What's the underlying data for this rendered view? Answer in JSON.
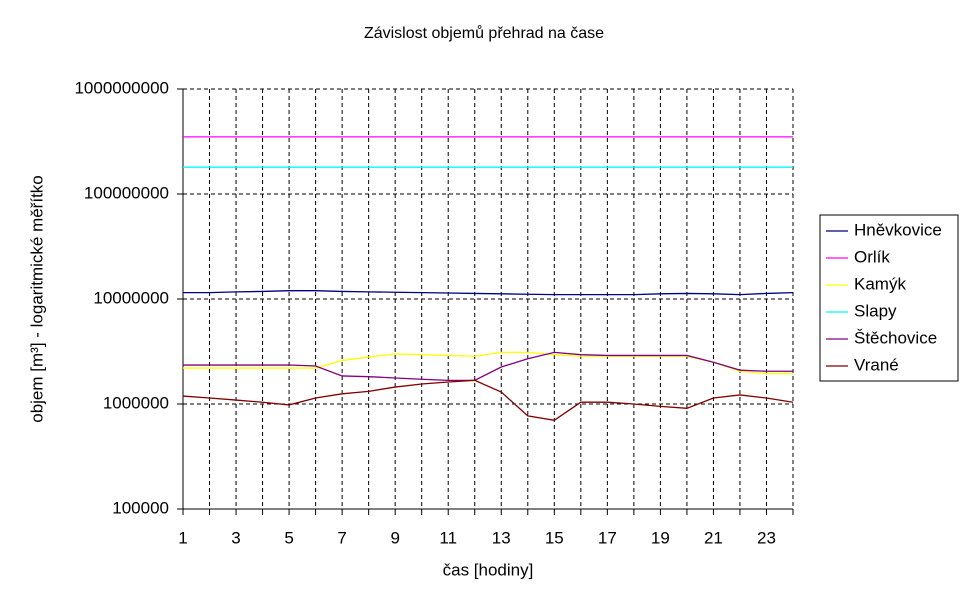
{
  "chart_data": {
    "type": "line",
    "title": "Závislost objemů přehrad na čase",
    "x_label": "čas [hodiny]",
    "y_label": "objem [m³] - logaritmické měřítko",
    "x": [
      1,
      2,
      3,
      4,
      5,
      6,
      7,
      8,
      9,
      10,
      11,
      12,
      13,
      14,
      15,
      16,
      17,
      18,
      19,
      20,
      21,
      22,
      23,
      24
    ],
    "xlim": [
      1,
      24
    ],
    "xticks": [
      1,
      3,
      5,
      7,
      9,
      11,
      13,
      15,
      17,
      19,
      21,
      23
    ],
    "ylim": [
      100000,
      1000000000
    ],
    "yticks": [
      100000,
      1000000,
      10000000,
      100000000,
      1000000000
    ],
    "log_y": true,
    "grid": true,
    "legend": "right",
    "series": [
      {
        "name": "Hněvkovice",
        "color": "#000080",
        "values": [
          11500000,
          11500000,
          11700000,
          11800000,
          12000000,
          12000000,
          11800000,
          11700000,
          11600000,
          11500000,
          11400000,
          11300000,
          11200000,
          11100000,
          11000000,
          11000000,
          11000000,
          11000000,
          11200000,
          11300000,
          11200000,
          11000000,
          11300000,
          11500000
        ]
      },
      {
        "name": "Orlík",
        "color": "#ff00ff",
        "values": [
          350000000,
          350000000,
          350000000,
          350000000,
          350000000,
          350000000,
          350000000,
          350000000,
          350000000,
          350000000,
          350000000,
          350000000,
          350000000,
          350000000,
          350000000,
          350000000,
          350000000,
          350000000,
          350000000,
          350000000,
          350000000,
          350000000,
          350000000,
          350000000
        ]
      },
      {
        "name": "Kamýk",
        "color": "#ffff00",
        "values": [
          2200000,
          2200000,
          2200000,
          2200000,
          2200000,
          2200000,
          2600000,
          2800000,
          3000000,
          2950000,
          2900000,
          2850000,
          3100000,
          3100000,
          2950000,
          2850000,
          2850000,
          2850000,
          2850000,
          2850000,
          2500000,
          2050000,
          1950000,
          1950000
        ]
      },
      {
        "name": "Slapy",
        "color": "#00ffff",
        "values": [
          180000000,
          180000000,
          180000000,
          180000000,
          180000000,
          180000000,
          180000000,
          180000000,
          180000000,
          180000000,
          180000000,
          180000000,
          180000000,
          180000000,
          180000000,
          180000000,
          180000000,
          180000000,
          180000000,
          180000000,
          180000000,
          180000000,
          180000000,
          180000000
        ]
      },
      {
        "name": "Štěchovice",
        "color": "#800080",
        "values": [
          2350000,
          2350000,
          2350000,
          2350000,
          2350000,
          2300000,
          1850000,
          1820000,
          1770000,
          1720000,
          1680000,
          1680000,
          2250000,
          2700000,
          3100000,
          2950000,
          2900000,
          2900000,
          2900000,
          2900000,
          2500000,
          2100000,
          2050000,
          2050000
        ]
      },
      {
        "name": "Vrané",
        "color": "#800000",
        "values": [
          1190000,
          1140000,
          1090000,
          1040000,
          980000,
          1140000,
          1250000,
          1320000,
          1450000,
          1550000,
          1620000,
          1680000,
          1300000,
          770000,
          700000,
          1040000,
          1040000,
          1000000,
          950000,
          910000,
          1140000,
          1220000,
          1140000,
          1040000
        ]
      }
    ]
  }
}
